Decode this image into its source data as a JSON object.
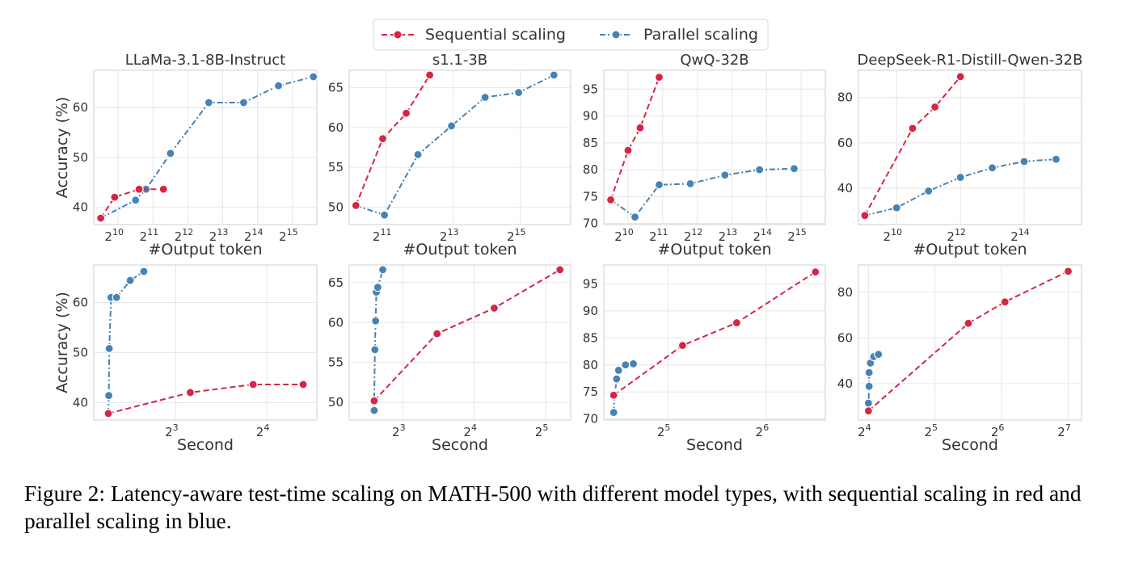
{
  "legend": {
    "items": [
      {
        "label": "Sequential scaling",
        "color": "#d62545"
      },
      {
        "label": "Parallel scaling",
        "color": "#4682b4"
      }
    ]
  },
  "caption": "Figure 2: Latency-aware test-time scaling on MATH-500 with different model types, with sequential scaling in red and parallel scaling in blue.",
  "colors": {
    "sequential": "#d62545",
    "parallel": "#4682b4",
    "grid": "#e6e6e6"
  },
  "chart_data": [
    {
      "type": "line",
      "title": "LLaMa-3.1-8B-Instruct",
      "xlabel": "#Output token",
      "ylabel": "Accuracy (%)",
      "xscale": "log2",
      "xlim": [
        9.3,
        15.7
      ],
      "ylim": [
        36.5,
        67.5
      ],
      "xticks": [
        {
          "v": 10,
          "base": "2",
          "exp": "10"
        },
        {
          "v": 11,
          "base": "2",
          "exp": "11"
        },
        {
          "v": 12,
          "base": "2",
          "exp": "12"
        },
        {
          "v": 13,
          "base": "2",
          "exp": "13"
        },
        {
          "v": 14,
          "base": "2",
          "exp": "14"
        },
        {
          "v": 15,
          "base": "2",
          "exp": "15"
        }
      ],
      "yticks": [
        40,
        50,
        60
      ],
      "series": [
        {
          "name": "Sequential scaling",
          "x": [
            9.5,
            9.9,
            10.6,
            11.3
          ],
          "y": [
            37.8,
            42.0,
            43.6,
            43.6
          ]
        },
        {
          "name": "Parallel scaling",
          "x": [
            9.5,
            10.5,
            10.8,
            11.5,
            12.6,
            13.6,
            14.6,
            15.6
          ],
          "y": [
            37.8,
            41.4,
            43.6,
            50.8,
            61.0,
            61.0,
            64.4,
            66.2
          ]
        }
      ]
    },
    {
      "type": "line",
      "title": "s1.1-3B",
      "xlabel": "#Output token",
      "ylabel": "",
      "xscale": "log2",
      "xlim": [
        9.9,
        16.5
      ],
      "ylim": [
        47.8,
        67.2
      ],
      "xticks": [
        {
          "v": 11,
          "base": "2",
          "exp": "11"
        },
        {
          "v": 13,
          "base": "2",
          "exp": "13"
        },
        {
          "v": 15,
          "base": "2",
          "exp": "15"
        }
      ],
      "yticks": [
        50,
        55,
        60,
        65
      ],
      "series": [
        {
          "name": "Sequential scaling",
          "x": [
            10.1,
            10.9,
            11.6,
            12.3
          ],
          "y": [
            50.2,
            58.6,
            61.8,
            66.6
          ]
        },
        {
          "name": "Parallel scaling",
          "x": [
            10.1,
            10.95,
            11.95,
            12.95,
            13.95,
            14.95,
            16.0
          ],
          "y": [
            50.2,
            49.0,
            56.6,
            60.2,
            63.8,
            64.4,
            66.6
          ]
        }
      ]
    },
    {
      "type": "line",
      "title": "QwQ-32B",
      "xlabel": "#Output token",
      "ylabel": "",
      "xscale": "log2",
      "xlim": [
        9.3,
        15.7
      ],
      "ylim": [
        69.8,
        98.5
      ],
      "xticks": [
        {
          "v": 10,
          "base": "2",
          "exp": "10"
        },
        {
          "v": 11,
          "base": "2",
          "exp": "11"
        },
        {
          "v": 12,
          "base": "2",
          "exp": "12"
        },
        {
          "v": 13,
          "base": "2",
          "exp": "13"
        },
        {
          "v": 14,
          "base": "2",
          "exp": "14"
        },
        {
          "v": 15,
          "base": "2",
          "exp": "15"
        }
      ],
      "yticks": [
        70,
        75,
        80,
        85,
        90,
        95
      ],
      "series": [
        {
          "name": "Sequential scaling",
          "x": [
            9.5,
            10.0,
            10.35,
            10.9
          ],
          "y": [
            74.4,
            83.6,
            87.8,
            97.2
          ]
        },
        {
          "name": "Parallel scaling",
          "x": [
            9.5,
            10.2,
            10.9,
            11.8,
            12.8,
            13.8,
            14.8
          ],
          "y": [
            74.4,
            71.2,
            77.2,
            77.4,
            79.0,
            80.0,
            80.2
          ]
        }
      ]
    },
    {
      "type": "line",
      "title": "DeepSeek-R1-Distill-Qwen-32B",
      "xlabel": "#Output token",
      "ylabel": "",
      "xscale": "log2",
      "xlim": [
        8.8,
        15.8
      ],
      "ylim": [
        24.0,
        92.0
      ],
      "xticks": [
        {
          "v": 10,
          "base": "2",
          "exp": "10"
        },
        {
          "v": 12,
          "base": "2",
          "exp": "12"
        },
        {
          "v": 14,
          "base": "2",
          "exp": "14"
        }
      ],
      "yticks": [
        40,
        60,
        80
      ],
      "series": [
        {
          "name": "Sequential scaling",
          "x": [
            9.0,
            10.5,
            11.2,
            12.0
          ],
          "y": [
            28.0,
            66.4,
            75.8,
            89.2
          ]
        },
        {
          "name": "Parallel scaling",
          "x": [
            9.0,
            10.0,
            11.0,
            12.0,
            13.0,
            14.0,
            15.0
          ],
          "y": [
            28.0,
            31.4,
            38.8,
            44.8,
            49.0,
            51.8,
            52.8
          ]
        }
      ]
    },
    {
      "type": "line",
      "title": "",
      "xlabel": "Second",
      "ylabel": "Accuracy (%)",
      "xscale": "log2",
      "xlim": [
        2.1,
        4.55
      ],
      "ylim": [
        36.5,
        67.5
      ],
      "xticks": [
        {
          "v": 3,
          "base": "2",
          "exp": "3"
        },
        {
          "v": 4,
          "base": "2",
          "exp": "4"
        }
      ],
      "yticks": [
        40,
        50,
        60
      ],
      "series": [
        {
          "name": "Sequential scaling",
          "x": [
            2.26,
            3.16,
            3.85,
            4.4
          ],
          "y": [
            37.8,
            42.0,
            43.6,
            43.6
          ]
        },
        {
          "name": "Parallel scaling",
          "x": [
            2.26,
            2.265,
            2.27,
            2.29,
            2.35,
            2.5,
            2.65
          ],
          "y": [
            37.8,
            41.4,
            50.8,
            61.0,
            61.0,
            64.4,
            66.2
          ]
        }
      ]
    },
    {
      "type": "line",
      "title": "",
      "xlabel": "Second",
      "ylabel": "",
      "xscale": "log2",
      "xlim": [
        2.25,
        5.35
      ],
      "ylim": [
        47.8,
        67.2
      ],
      "xticks": [
        {
          "v": 3,
          "base": "2",
          "exp": "3"
        },
        {
          "v": 4,
          "base": "2",
          "exp": "4"
        },
        {
          "v": 5,
          "base": "2",
          "exp": "5"
        }
      ],
      "yticks": [
        50,
        55,
        60,
        65
      ],
      "series": [
        {
          "name": "Sequential scaling",
          "x": [
            2.6,
            3.48,
            4.28,
            5.2
          ],
          "y": [
            50.2,
            58.6,
            61.8,
            66.6
          ]
        },
        {
          "name": "Parallel scaling",
          "x": [
            2.6,
            2.6,
            2.61,
            2.62,
            2.63,
            2.65,
            2.72
          ],
          "y": [
            49.0,
            50.2,
            56.6,
            60.2,
            63.8,
            64.4,
            66.6
          ]
        }
      ]
    },
    {
      "type": "line",
      "title": "",
      "xlabel": "Second",
      "ylabel": "",
      "xscale": "log2",
      "xlim": [
        4.35,
        6.6
      ],
      "ylim": [
        69.8,
        98.5
      ],
      "xticks": [
        {
          "v": 5,
          "base": "2",
          "exp": "5"
        },
        {
          "v": 6,
          "base": "2",
          "exp": "6"
        }
      ],
      "yticks": [
        70,
        75,
        80,
        85,
        90,
        95
      ],
      "series": [
        {
          "name": "Sequential scaling",
          "x": [
            4.45,
            5.15,
            5.7,
            6.5
          ],
          "y": [
            74.4,
            83.6,
            87.8,
            97.2
          ]
        },
        {
          "name": "Parallel scaling",
          "x": [
            4.45,
            4.46,
            4.48,
            4.48,
            4.5,
            4.57,
            4.65
          ],
          "y": [
            71.2,
            74.4,
            77.2,
            77.4,
            79.0,
            80.0,
            80.2
          ]
        }
      ]
    },
    {
      "type": "line",
      "title": "",
      "xlabel": "Second",
      "ylabel": "",
      "xscale": "log2",
      "xlim": [
        3.85,
        7.2
      ],
      "ylim": [
        24.0,
        92.0
      ],
      "xticks": [
        {
          "v": 4,
          "base": "2",
          "exp": "4"
        },
        {
          "v": 5,
          "base": "2",
          "exp": "5"
        },
        {
          "v": 6,
          "base": "2",
          "exp": "6"
        },
        {
          "v": 7,
          "base": "2",
          "exp": "7"
        }
      ],
      "yticks": [
        40,
        60,
        80
      ],
      "series": [
        {
          "name": "Sequential scaling",
          "x": [
            4.0,
            5.5,
            6.05,
            7.0
          ],
          "y": [
            28.0,
            66.4,
            75.8,
            89.2
          ]
        },
        {
          "name": "Parallel scaling",
          "x": [
            4.0,
            4.0,
            4.01,
            4.01,
            4.03,
            4.08,
            4.15
          ],
          "y": [
            28.0,
            31.4,
            38.8,
            44.8,
            49.0,
            51.8,
            52.8
          ]
        }
      ]
    }
  ]
}
